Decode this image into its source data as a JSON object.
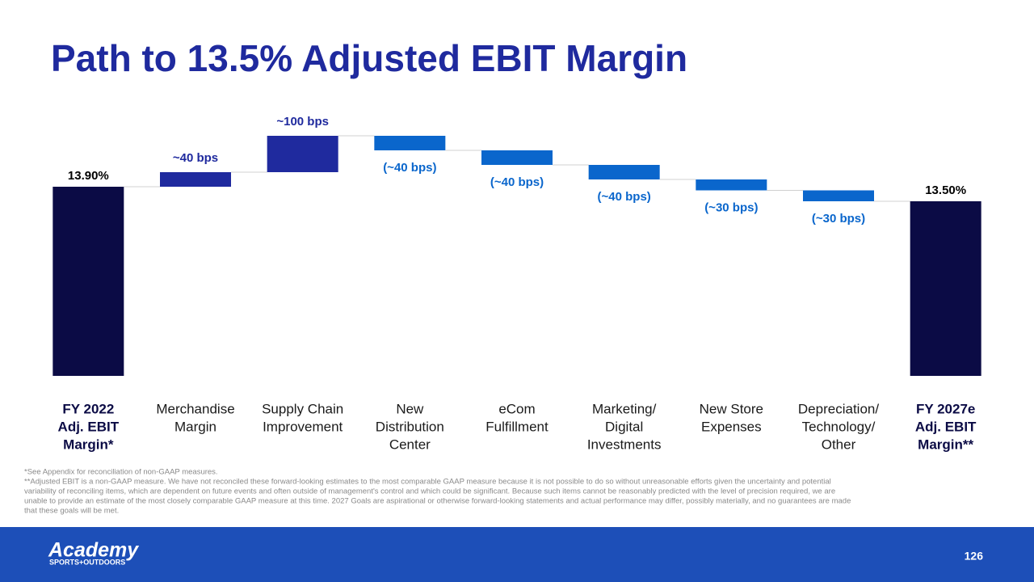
{
  "chart_data": {
    "type": "waterfall",
    "title": "Path to 13.5% Adjusted EBIT Margin",
    "categories": [
      [
        "FY 2022",
        "Adj. EBIT",
        "Margin*"
      ],
      [
        "Merchandise",
        "Margin"
      ],
      [
        "Supply Chain",
        "Improvement"
      ],
      [
        "New",
        "Distribution",
        "Center"
      ],
      [
        "eCom",
        "Fulfillment"
      ],
      [
        "Marketing/",
        "Digital",
        "Investments"
      ],
      [
        "New Store",
        "Expenses"
      ],
      [
        "Depreciation/",
        "Technology/",
        "Other"
      ],
      [
        "FY 2027e",
        "Adj. EBIT",
        "Margin**"
      ]
    ],
    "values": [
      13.9,
      0.4,
      1.0,
      -0.4,
      -0.4,
      -0.4,
      -0.3,
      -0.3,
      13.5
    ],
    "value_labels": [
      "13.90%",
      "~40 bps",
      "~100 bps",
      "(~40 bps)",
      "(~40 bps)",
      "(~40 bps)",
      "(~30 bps)",
      "(~30 bps)",
      "13.50%"
    ],
    "colors": {
      "total": "#0b0b45",
      "increase": "#1f2a9e",
      "decrease": "#0a66cc"
    },
    "ylim": [
      8.7,
      15.5
    ],
    "footnotes": [
      "*See Appendix for reconciliation of non-GAAP measures.",
      "**Adjusted EBIT is a non-GAAP measure. We have not reconciled these forward-looking estimates to the most comparable GAAP measure because it is not possible to do so without unreasonable efforts given the uncertainty and potential",
      "variability of reconciling items, which are dependent on future events and often outside of management's control and which could be significant. Because such items cannot be reasonably predicted with the level of precision required, we are",
      "unable to provide an estimate of the most closely comparable GAAP measure at this time. 2027 Goals are aspirational or otherwise forward-looking statements and actual performance may differ, possibly materially, and no guarantees are made",
      "that these goals will be met."
    ]
  },
  "footer": {
    "brand": "Academy",
    "tagline": "SPORTS+OUTDOORS",
    "page_number": "126"
  }
}
